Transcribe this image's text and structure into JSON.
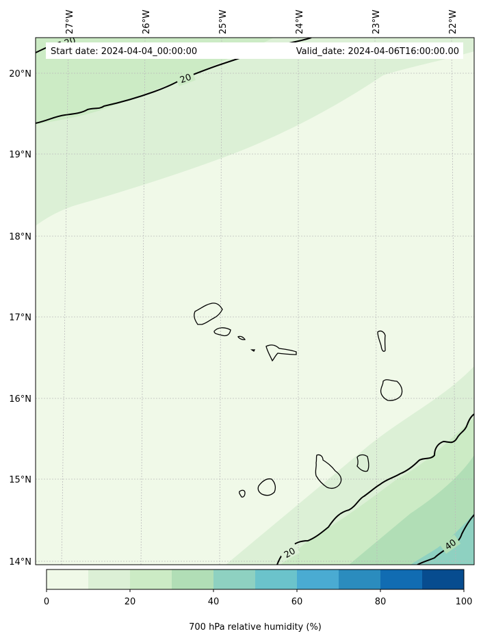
{
  "header": {
    "start_date": "Start date: 2024-04-04_00:00:00",
    "valid_date": "Valid_date: 2024-04-06T16:00:00.00"
  },
  "longitude_labels": [
    "27°W",
    "26°W",
    "25°W",
    "24°W",
    "23°W",
    "22°W"
  ],
  "latitude_labels": [
    "20°N",
    "19°N",
    "18°N",
    "17°N",
    "16°N",
    "15°N",
    "14°N"
  ],
  "contours": [
    {
      "label": "20",
      "location": "northwest"
    },
    {
      "label": "20",
      "location": "north edge"
    },
    {
      "label": "20",
      "location": "southeast"
    },
    {
      "label": "40",
      "location": "southeast corner"
    }
  ],
  "colorbar": {
    "label": "700 hPa relative humidity (%)",
    "ticks": [
      "0",
      "20",
      "40",
      "60",
      "80",
      "100"
    ],
    "levels": [
      0,
      10,
      20,
      30,
      40,
      50,
      60,
      70,
      80,
      90,
      100
    ],
    "colors": [
      "#f0f9e8",
      "#dcf0d6",
      "#ccebc5",
      "#b1deb6",
      "#8ed1c1",
      "#6bc3cb",
      "#4aabd2",
      "#2b8cbe",
      "#116cb2",
      "#074c8f"
    ]
  }
}
